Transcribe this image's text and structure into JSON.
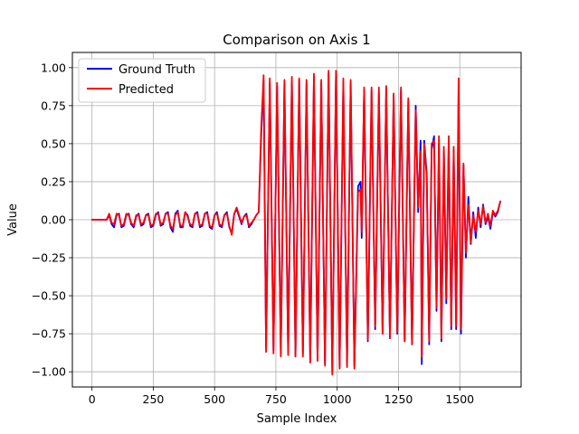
{
  "chart_data": {
    "type": "line",
    "title": "Comparison on Axis 1",
    "xlabel": "Sample Index",
    "ylabel": "Value",
    "xlim": [
      -80,
      1750
    ],
    "ylim": [
      -1.1,
      1.1
    ],
    "xticks": [
      0,
      250,
      500,
      750,
      1000,
      1250,
      1500
    ],
    "yticks": [
      -1.0,
      -0.75,
      -0.5,
      -0.25,
      0.0,
      0.25,
      0.5,
      0.75,
      1.0
    ],
    "xtick_labels": [
      "0",
      "250",
      "500",
      "750",
      "1000",
      "1250",
      "1500"
    ],
    "ytick_labels": [
      "−1.00",
      "−0.75",
      "−0.50",
      "−0.25",
      "0.00",
      "0.25",
      "0.50",
      "0.75",
      "1.00"
    ],
    "grid": true,
    "legend_position": "top-left",
    "series": [
      {
        "name": "Ground Truth",
        "color": "#0000ff",
        "x": [
          0,
          60,
          70,
          80,
          90,
          100,
          110,
          120,
          130,
          140,
          150,
          160,
          170,
          180,
          190,
          200,
          210,
          220,
          230,
          240,
          250,
          260,
          270,
          280,
          290,
          300,
          310,
          320,
          330,
          340,
          350,
          360,
          370,
          380,
          390,
          400,
          410,
          420,
          430,
          440,
          450,
          460,
          470,
          480,
          490,
          500,
          510,
          520,
          530,
          540,
          550,
          560,
          570,
          580,
          590,
          600,
          610,
          620,
          630,
          640,
          650,
          660,
          670,
          680,
          690,
          700,
          710,
          725,
          740,
          755,
          770,
          785,
          800,
          815,
          830,
          845,
          860,
          875,
          890,
          905,
          920,
          935,
          950,
          965,
          980,
          995,
          1010,
          1025,
          1040,
          1055,
          1070,
          1085,
          1095,
          1100,
          1110,
          1125,
          1140,
          1155,
          1170,
          1185,
          1200,
          1215,
          1230,
          1245,
          1260,
          1275,
          1290,
          1305,
          1320,
          1330,
          1340,
          1345,
          1355,
          1365,
          1375,
          1385,
          1395,
          1405,
          1415,
          1425,
          1435,
          1445,
          1455,
          1465,
          1475,
          1485,
          1495,
          1505,
          1515,
          1525,
          1535,
          1545,
          1555,
          1565,
          1575,
          1585,
          1595,
          1605,
          1615,
          1625,
          1635,
          1645,
          1655,
          1665
        ],
        "values": [
          0.0,
          0.0,
          0.03,
          -0.03,
          -0.05,
          0.03,
          0.04,
          -0.05,
          -0.04,
          0.03,
          0.04,
          -0.03,
          -0.05,
          0.02,
          0.04,
          -0.04,
          -0.03,
          0.03,
          0.04,
          -0.05,
          -0.04,
          0.03,
          0.05,
          -0.04,
          -0.03,
          0.04,
          0.05,
          -0.05,
          -0.08,
          0.04,
          0.06,
          -0.05,
          -0.05,
          0.05,
          0.03,
          -0.04,
          -0.05,
          0.04,
          0.05,
          -0.05,
          -0.04,
          0.04,
          0.05,
          -0.05,
          -0.06,
          0.03,
          0.05,
          -0.04,
          -0.05,
          0.03,
          0.05,
          -0.05,
          -0.09,
          0.04,
          0.07,
          0.02,
          -0.03,
          0.02,
          0.04,
          -0.05,
          -0.03,
          0.0,
          0.03,
          0.05,
          0.55,
          0.92,
          -0.85,
          0.9,
          -0.86,
          0.88,
          -0.88,
          0.9,
          -0.87,
          0.91,
          -0.9,
          0.92,
          -0.88,
          0.9,
          -0.93,
          0.94,
          -0.92,
          0.9,
          -0.95,
          0.96,
          -1.0,
          0.95,
          -0.97,
          0.9,
          -0.95,
          0.9,
          -0.96,
          0.22,
          0.25,
          -0.12,
          0.85,
          -0.8,
          0.85,
          -0.72,
          0.83,
          -0.75,
          0.86,
          -0.78,
          0.82,
          -0.75,
          0.85,
          -0.8,
          0.78,
          -0.82,
          0.75,
          0.05,
          0.52,
          -0.95,
          0.52,
          0.3,
          -0.82,
          0.46,
          0.55,
          -0.6,
          0.5,
          -0.8,
          0.45,
          -0.55,
          0.52,
          -0.72,
          0.45,
          -0.72,
          0.8,
          -0.75,
          0.36,
          -0.25,
          0.15,
          -0.16,
          0.05,
          -0.12,
          0.08,
          -0.05,
          0.1,
          -0.03,
          0.02,
          -0.06,
          0.05,
          0.02,
          0.05,
          0.12
        ]
      },
      {
        "name": "Predicted",
        "color": "#ff0000",
        "x": [
          0,
          60,
          70,
          80,
          90,
          100,
          110,
          120,
          130,
          140,
          150,
          160,
          170,
          180,
          190,
          200,
          210,
          220,
          230,
          240,
          250,
          260,
          270,
          280,
          290,
          300,
          310,
          320,
          330,
          340,
          350,
          360,
          370,
          380,
          390,
          400,
          410,
          420,
          430,
          440,
          450,
          460,
          470,
          480,
          490,
          500,
          510,
          520,
          530,
          540,
          550,
          560,
          570,
          580,
          590,
          600,
          610,
          620,
          630,
          640,
          650,
          660,
          670,
          680,
          690,
          700,
          710,
          725,
          740,
          755,
          770,
          785,
          800,
          815,
          830,
          845,
          860,
          875,
          890,
          905,
          920,
          935,
          950,
          965,
          980,
          995,
          1010,
          1025,
          1040,
          1055,
          1070,
          1085,
          1095,
          1100,
          1110,
          1125,
          1140,
          1155,
          1170,
          1185,
          1200,
          1215,
          1230,
          1245,
          1260,
          1275,
          1290,
          1305,
          1320,
          1330,
          1340,
          1345,
          1355,
          1365,
          1375,
          1385,
          1395,
          1405,
          1415,
          1425,
          1435,
          1445,
          1455,
          1465,
          1475,
          1485,
          1495,
          1505,
          1515,
          1525,
          1535,
          1545,
          1555,
          1565,
          1575,
          1585,
          1595,
          1605,
          1615,
          1625,
          1635,
          1645,
          1655,
          1665
        ],
        "values": [
          0.0,
          0.0,
          0.04,
          -0.02,
          -0.03,
          0.04,
          0.03,
          -0.04,
          -0.03,
          0.04,
          0.03,
          -0.02,
          -0.04,
          0.03,
          0.03,
          -0.03,
          -0.02,
          0.03,
          0.03,
          -0.04,
          -0.03,
          0.04,
          0.04,
          -0.03,
          -0.02,
          0.04,
          0.04,
          -0.04,
          -0.06,
          0.03,
          0.05,
          -0.04,
          -0.04,
          0.05,
          0.02,
          -0.03,
          -0.04,
          0.04,
          0.04,
          -0.04,
          -0.03,
          0.04,
          0.04,
          -0.04,
          -0.05,
          0.03,
          0.04,
          -0.03,
          -0.04,
          0.03,
          0.04,
          -0.04,
          -0.1,
          0.04,
          0.08,
          0.03,
          -0.02,
          0.02,
          0.03,
          -0.04,
          -0.02,
          0.0,
          0.03,
          0.05,
          0.6,
          0.95,
          -0.87,
          0.93,
          -0.88,
          0.9,
          -0.9,
          0.92,
          -0.89,
          0.94,
          -0.9,
          0.93,
          -0.9,
          0.92,
          -0.94,
          0.96,
          -0.93,
          0.92,
          -0.96,
          0.98,
          -1.02,
          0.98,
          -0.98,
          0.93,
          -0.97,
          0.92,
          -0.98,
          0.18,
          0.2,
          -0.08,
          0.87,
          -0.79,
          0.87,
          -0.7,
          0.87,
          -0.75,
          0.88,
          -0.78,
          0.83,
          -0.74,
          0.87,
          -0.8,
          0.8,
          -0.82,
          0.72,
          0.08,
          0.45,
          -0.9,
          0.5,
          0.28,
          -0.8,
          0.5,
          0.52,
          -0.58,
          0.55,
          -0.78,
          0.48,
          -0.52,
          0.55,
          -0.7,
          0.48,
          -0.7,
          0.93,
          -0.72,
          0.37,
          -0.22,
          0.1,
          -0.15,
          0.03,
          -0.08,
          0.06,
          -0.03,
          0.09,
          -0.02,
          0.04,
          -0.04,
          0.06,
          0.03,
          0.06,
          0.12
        ]
      }
    ]
  }
}
